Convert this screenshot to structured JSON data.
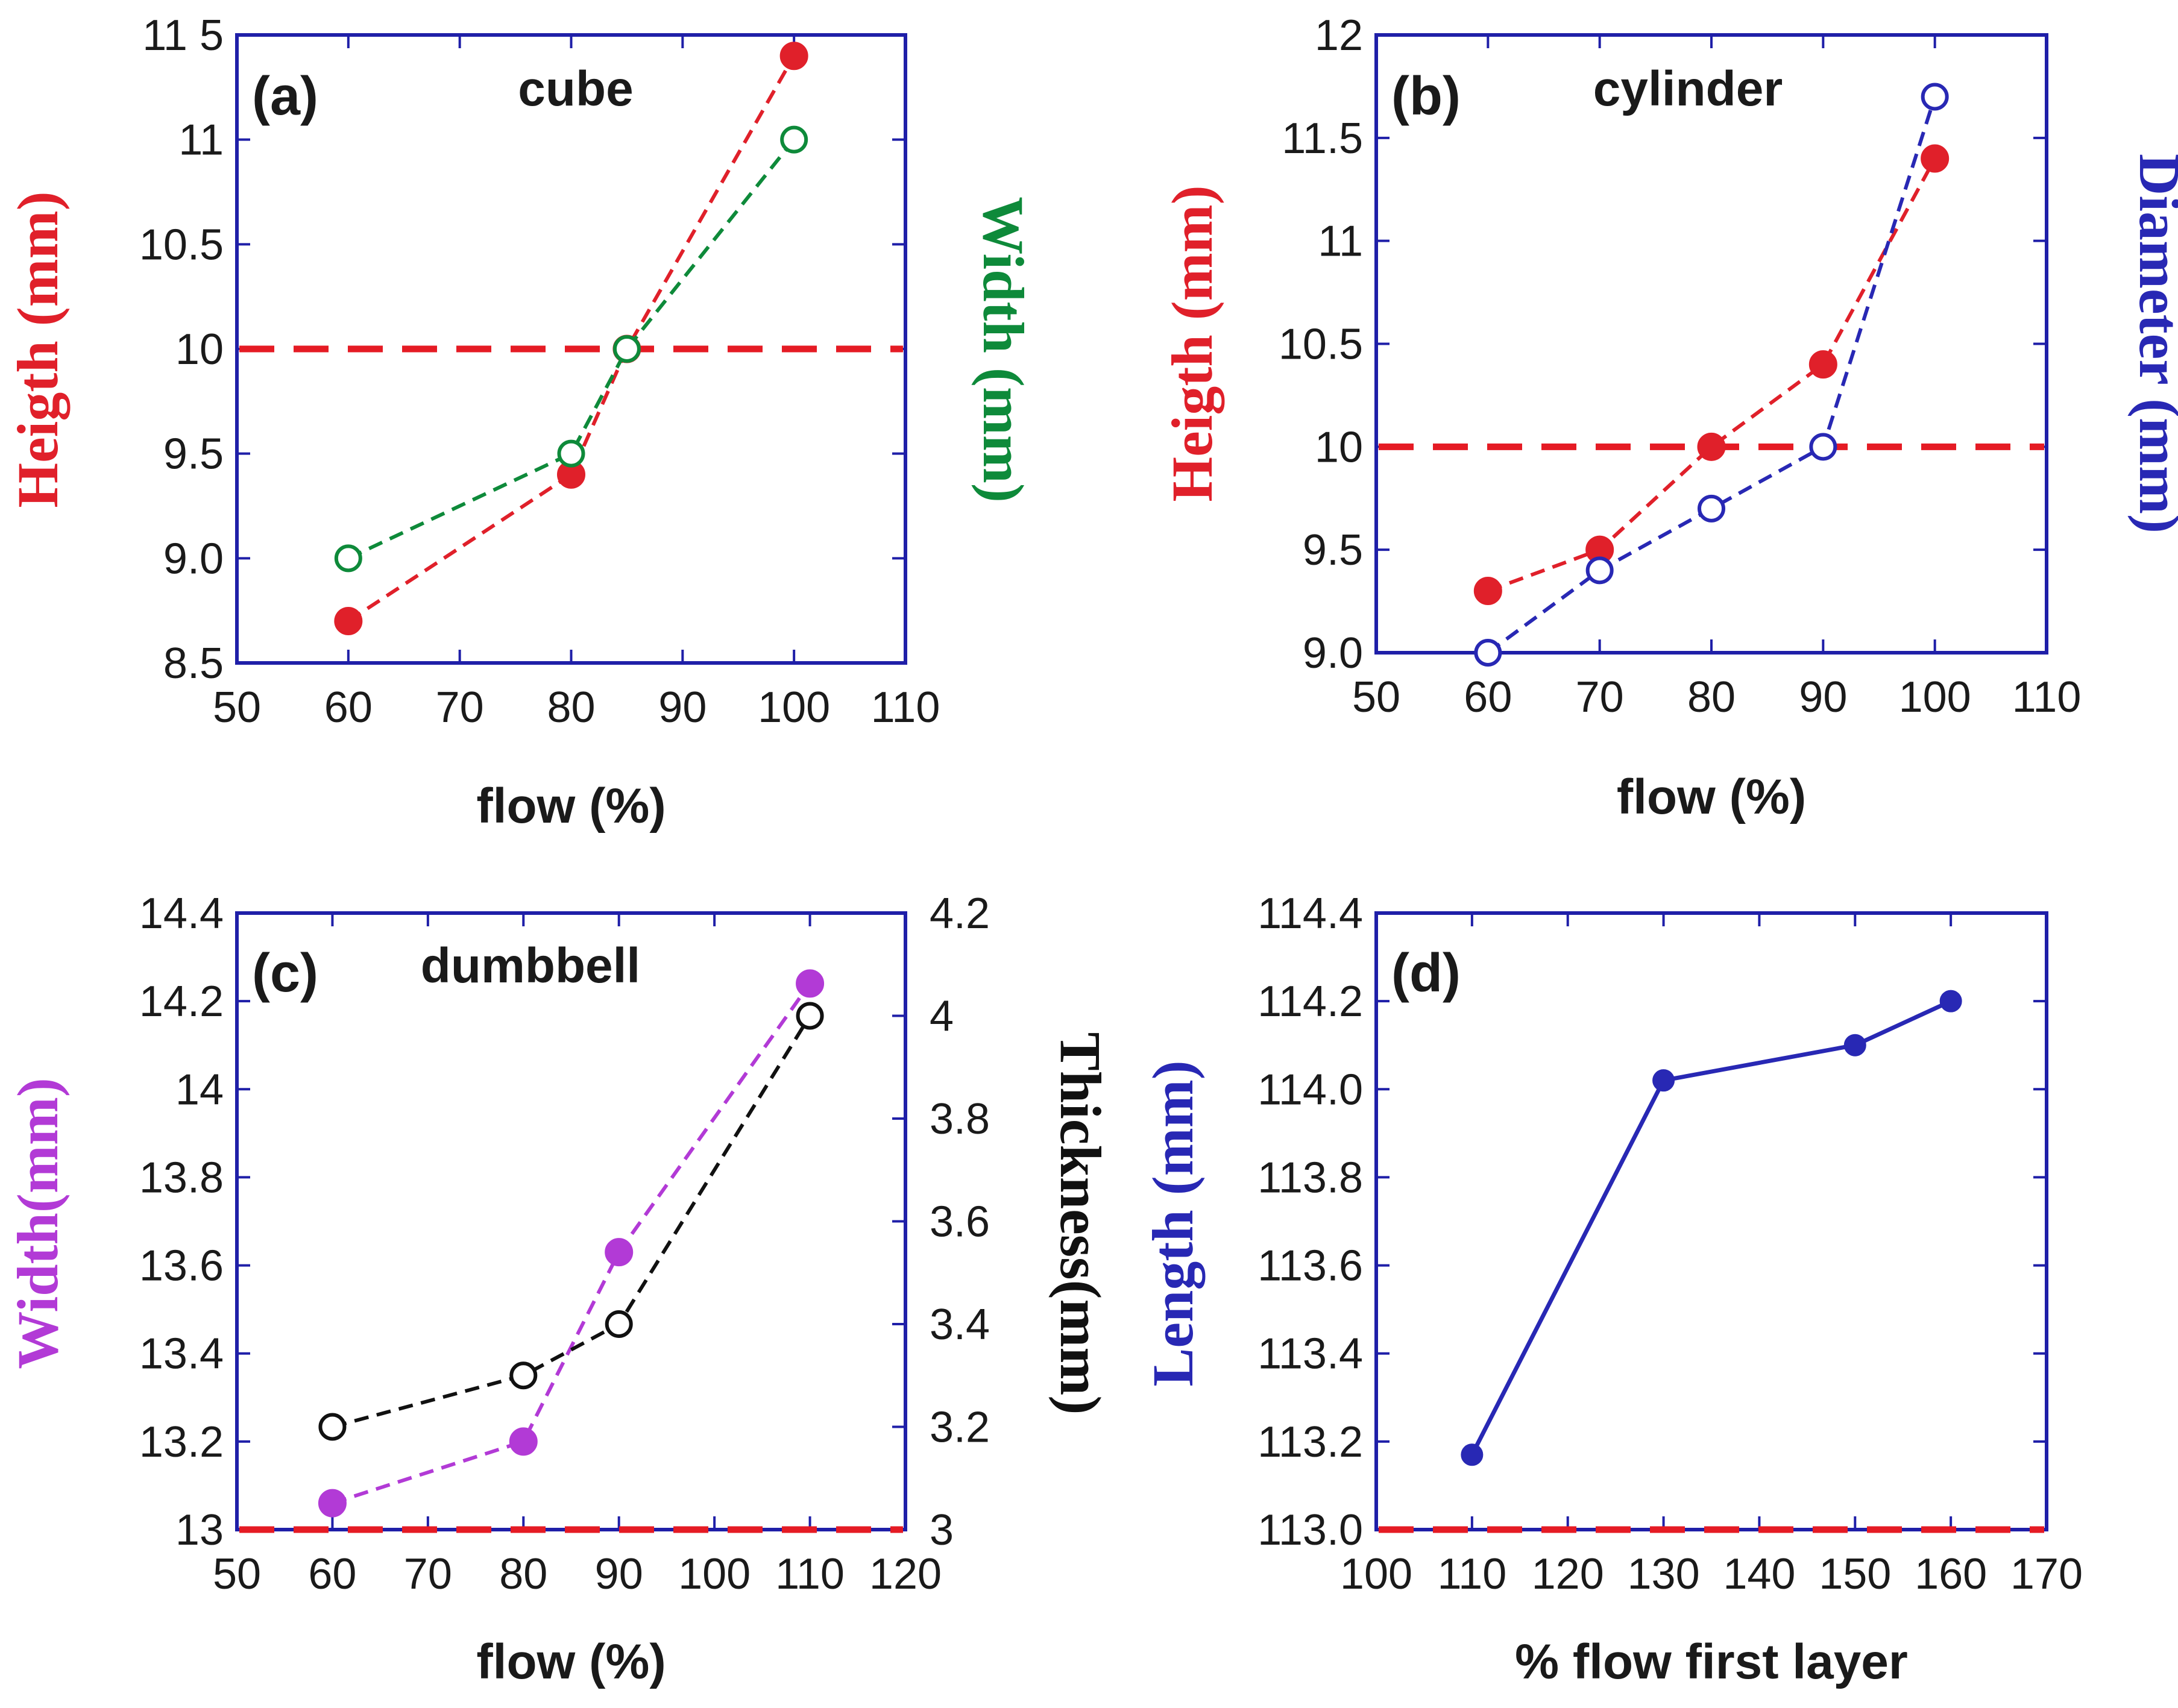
{
  "colors": {
    "axis": "#1f1fa8",
    "red": "#e0202a",
    "green": "#0e8a3a",
    "blue": "#2828b4",
    "purple": "#b23ad6",
    "black": "#111111",
    "refline": "#e51b24"
  },
  "chart_data": [
    {
      "id": "a",
      "type": "line",
      "panel_label": "(a)",
      "title": "cube",
      "xlabel": "flow (%)",
      "ylabel_left": "Heigth (mm)",
      "ylabel_right": "Width (mm)",
      "xlim": [
        50,
        110
      ],
      "ylim": [
        8.5,
        11.5
      ],
      "xticks": [
        "50",
        "60",
        "70",
        "80",
        "90",
        "100",
        "110"
      ],
      "yticks": [
        "8.5",
        "9.0",
        "9.5",
        "10",
        "10.5",
        "11",
        "11 5"
      ],
      "reference_line": 10,
      "series": [
        {
          "name": "Heigth",
          "axis": "left",
          "color": "red",
          "marker": "filled",
          "x": [
            60,
            80,
            85,
            100
          ],
          "y": [
            8.7,
            9.4,
            10.0,
            11.4
          ]
        },
        {
          "name": "Width",
          "axis": "left",
          "color": "green",
          "marker": "open",
          "x": [
            60,
            80,
            85,
            100
          ],
          "y": [
            9.0,
            9.5,
            10.0,
            11.0
          ]
        }
      ]
    },
    {
      "id": "b",
      "type": "line",
      "panel_label": "(b)",
      "title": "cylinder",
      "xlabel": "flow (%)",
      "ylabel_left": "Heigth (mm)",
      "ylabel_right": "Diameter (mm)",
      "xlim": [
        50,
        110
      ],
      "ylim": [
        9.0,
        12.0
      ],
      "xticks": [
        "50",
        "60",
        "70",
        "80",
        "90",
        "100",
        "110"
      ],
      "yticks": [
        "9.0",
        "9.5",
        "10",
        "10.5",
        "11",
        "11.5",
        "12"
      ],
      "reference_line": 10,
      "series": [
        {
          "name": "Heigth",
          "axis": "left",
          "color": "red",
          "marker": "filled",
          "x": [
            60,
            70,
            80,
            90,
            100
          ],
          "y": [
            9.3,
            9.5,
            10.0,
            10.4,
            11.4
          ]
        },
        {
          "name": "Diameter",
          "axis": "left",
          "color": "blue",
          "marker": "open",
          "x": [
            60,
            70,
            80,
            90,
            100
          ],
          "y": [
            9.0,
            9.4,
            9.7,
            10.0,
            11.7
          ]
        }
      ]
    },
    {
      "id": "c",
      "type": "line",
      "panel_label": "(c)",
      "title": "dumbbell",
      "xlabel": "flow (%)",
      "ylabel_left": "Width(mm)",
      "ylabel_right": "Thickness(mm)",
      "xlim": [
        50,
        120
      ],
      "ylim": [
        13.0,
        14.4
      ],
      "ylim_right": [
        3.0,
        4.2
      ],
      "xticks": [
        "50",
        "60",
        "70",
        "80",
        "90",
        "100",
        "110",
        "120"
      ],
      "yticks": [
        "13",
        "13.2",
        "13.4",
        "13.6",
        "13.8",
        "14",
        "14.2",
        "14.4"
      ],
      "yticks_right": [
        "3",
        "3.2",
        "3.4",
        "3.6",
        "3.8",
        "4",
        "4.2"
      ],
      "reference_line": 13.0,
      "series": [
        {
          "name": "Width",
          "axis": "left",
          "color": "purple",
          "marker": "filled",
          "x": [
            60,
            80,
            90,
            110
          ],
          "y": [
            13.06,
            13.2,
            13.63,
            14.24
          ]
        },
        {
          "name": "Thickness",
          "axis": "right",
          "color": "black",
          "marker": "open",
          "x": [
            60,
            80,
            90,
            110
          ],
          "y": [
            3.2,
            3.3,
            3.4,
            4.0
          ]
        }
      ]
    },
    {
      "id": "d",
      "type": "line",
      "panel_label": "(d)",
      "title": "",
      "xlabel": "% flow first layer",
      "ylabel_left": "Length (mm)",
      "ylabel_right": "",
      "xlim": [
        100,
        170
      ],
      "ylim": [
        113.0,
        114.4
      ],
      "xticks": [
        "100",
        "110",
        "120",
        "130",
        "140",
        "150",
        "160",
        "170"
      ],
      "yticks": [
        "113.0",
        "113.2",
        "113.4",
        "113.6",
        "113.8",
        "114.0",
        "114.2",
        "114.4"
      ],
      "reference_line": 113.0,
      "series": [
        {
          "name": "Length",
          "axis": "left",
          "color": "blue",
          "marker": "filled",
          "solid": true,
          "x": [
            110,
            130,
            150,
            160
          ],
          "y": [
            113.17,
            114.02,
            114.1,
            114.2
          ]
        }
      ]
    }
  ]
}
